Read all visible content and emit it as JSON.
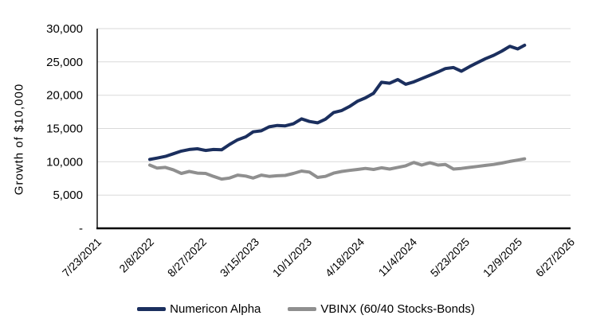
{
  "chart_data": {
    "type": "line",
    "title": "",
    "xlabel": "",
    "ylabel": "Growth of $10,000",
    "ylim": [
      0,
      30000
    ],
    "grid": "horizontal",
    "legend_position": "bottom",
    "colors": {
      "axis": "#000000",
      "gridline": "#d9d9d9",
      "background": "#ffffff"
    },
    "y_ticks": [
      {
        "value": 0,
        "label": "-"
      },
      {
        "value": 5000,
        "label": "5,000"
      },
      {
        "value": 10000,
        "label": "10,000"
      },
      {
        "value": 15000,
        "label": "15,000"
      },
      {
        "value": 20000,
        "label": "20,000"
      },
      {
        "value": 25000,
        "label": "25,000"
      },
      {
        "value": 30000,
        "label": "30,000"
      }
    ],
    "x_axis": {
      "start_date": "2021-07-23",
      "end_date": "2026-06-27",
      "tick_labels": [
        "7/23/2021",
        "2/8/2022",
        "8/27/2022",
        "3/15/2023",
        "10/1/2023",
        "4/18/2024",
        "11/4/2024",
        "5/23/2025",
        "12/9/2025",
        "6/27/2026"
      ]
    },
    "x_dates": [
      "2022-02-08",
      "2022-03-08",
      "2022-04-08",
      "2022-05-08",
      "2022-06-08",
      "2022-07-08",
      "2022-08-08",
      "2022-09-08",
      "2022-10-08",
      "2022-11-08",
      "2022-12-08",
      "2023-01-08",
      "2023-02-08",
      "2023-03-08",
      "2023-04-08",
      "2023-05-08",
      "2023-06-08",
      "2023-07-08",
      "2023-08-08",
      "2023-09-08",
      "2023-10-08",
      "2023-11-08",
      "2023-12-08",
      "2024-01-08",
      "2024-02-08",
      "2024-03-08",
      "2024-04-08",
      "2024-05-08",
      "2024-06-08",
      "2024-07-08",
      "2024-08-08",
      "2024-09-08",
      "2024-10-08",
      "2024-11-08",
      "2024-12-08",
      "2025-01-08",
      "2025-02-08",
      "2025-03-08",
      "2025-04-08",
      "2025-05-08",
      "2025-06-08",
      "2025-07-08",
      "2025-08-08",
      "2025-09-08",
      "2025-10-08",
      "2025-11-08",
      "2025-12-08",
      "2026-01-03"
    ],
    "series": [
      {
        "name": "Numericon Alpha",
        "color": "#1B2F5E",
        "stroke_width": 4,
        "values": [
          10350,
          10550,
          10800,
          11200,
          11600,
          11850,
          11950,
          11700,
          11850,
          11800,
          12600,
          13300,
          13750,
          14500,
          14650,
          15250,
          15450,
          15400,
          15700,
          16450,
          16050,
          15850,
          16400,
          17400,
          17700,
          18300,
          19100,
          19600,
          20300,
          21950,
          21800,
          22350,
          21650,
          22000,
          22500,
          23000,
          23500,
          24000,
          24150,
          23600,
          24300,
          24900,
          25500,
          26000,
          26600,
          27350,
          26950,
          27500
        ]
      },
      {
        "name": "VBINX (60/40 Stocks-Bonds)",
        "color": "#8F8F8F",
        "stroke_width": 4,
        "values": [
          9500,
          9050,
          9150,
          8800,
          8250,
          8550,
          8300,
          8250,
          7800,
          7400,
          7550,
          8000,
          7850,
          7550,
          8000,
          7800,
          7900,
          7950,
          8250,
          8600,
          8450,
          7650,
          7800,
          8300,
          8550,
          8700,
          8850,
          9000,
          8850,
          9100,
          8900,
          9150,
          9400,
          9900,
          9500,
          9850,
          9500,
          9600,
          8900,
          9000,
          9150,
          9300,
          9450,
          9600,
          9800,
          10050,
          10250,
          10450
        ]
      }
    ]
  }
}
